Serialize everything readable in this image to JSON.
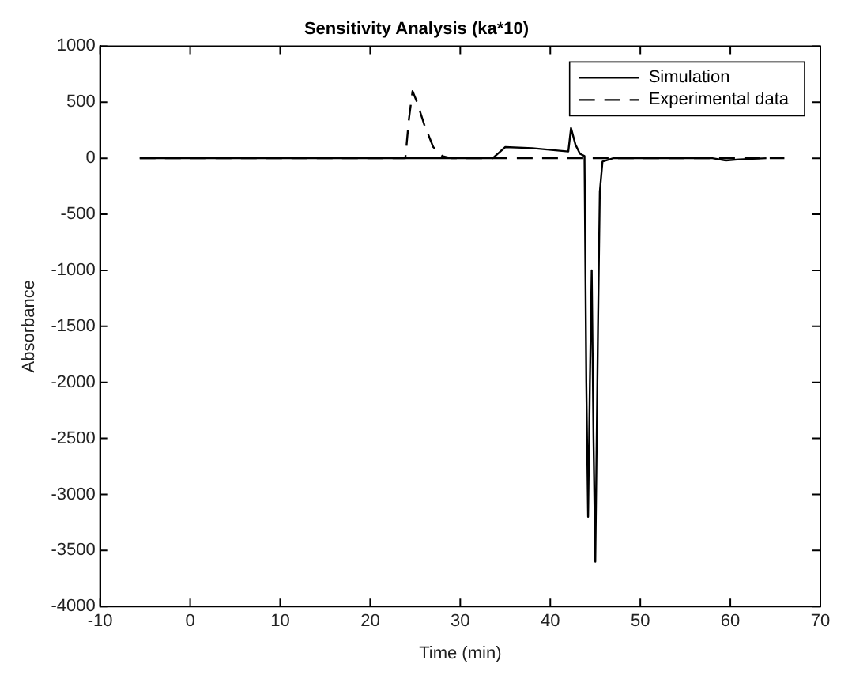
{
  "chart_data": {
    "type": "line",
    "title": "Sensitivity Analysis (ka*10)",
    "xlabel": "Time (min)",
    "ylabel": "Absorbance",
    "xlim": [
      -10,
      70
    ],
    "xticks": [
      -10,
      0,
      10,
      20,
      30,
      40,
      50,
      60,
      70
    ],
    "ylim": [
      -4000,
      1000
    ],
    "yticks": [
      -4000,
      -3500,
      -3000,
      -2500,
      -2000,
      -1500,
      -1000,
      -500,
      0,
      500,
      1000
    ],
    "grid": false,
    "legend": "top right",
    "series": [
      {
        "name": "Simulation",
        "color": "#000000",
        "line_style": "solid",
        "x": [
          -5.6,
          33.6,
          34.3,
          35,
          38,
          42,
          42.3,
          42.8,
          43.3,
          43.8,
          44.0,
          44.2,
          44.4,
          44.6,
          44.8,
          45.0,
          45.3,
          45.5,
          45.8,
          47,
          58,
          59.5,
          61,
          64
        ],
        "values": [
          0,
          0,
          50,
          100,
          90,
          60,
          270,
          120,
          40,
          20,
          -2000,
          -3200,
          -2000,
          -1000,
          -2500,
          -3600,
          -1500,
          -300,
          -30,
          0,
          0,
          -20,
          -10,
          0
        ]
      },
      {
        "name": "Experimental data",
        "color": "#000000",
        "line_style": "dashed",
        "x": [
          -5.6,
          23.9,
          24.3,
          24.7,
          25.2,
          26,
          27,
          28,
          29,
          66
        ],
        "values": [
          0,
          0,
          350,
          600,
          500,
          300,
          100,
          20,
          0,
          0
        ]
      }
    ]
  }
}
